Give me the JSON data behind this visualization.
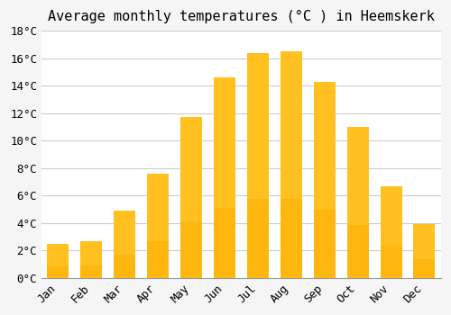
{
  "title": "Average monthly temperatures (°C ) in Heemskerk",
  "months": [
    "Jan",
    "Feb",
    "Mar",
    "Apr",
    "May",
    "Jun",
    "Jul",
    "Aug",
    "Sep",
    "Oct",
    "Nov",
    "Dec"
  ],
  "temperatures": [
    2.5,
    2.7,
    4.9,
    7.6,
    11.7,
    14.6,
    16.4,
    16.5,
    14.3,
    11.0,
    6.7,
    3.9
  ],
  "bar_color_top": "#FFC020",
  "bar_color_bottom": "#FFB000",
  "background_color": "#f5f5f5",
  "plot_bg_color": "#ffffff",
  "grid_color": "#cccccc",
  "ytick_labels": [
    "0°C",
    "2°C",
    "4°C",
    "6°C",
    "8°C",
    "10°C",
    "12°C",
    "14°C",
    "16°C",
    "18°C"
  ],
  "ytick_values": [
    0,
    2,
    4,
    6,
    8,
    10,
    12,
    14,
    16,
    18
  ],
  "ylim": [
    0,
    18
  ],
  "title_fontsize": 11,
  "tick_fontsize": 9,
  "font_family": "monospace"
}
